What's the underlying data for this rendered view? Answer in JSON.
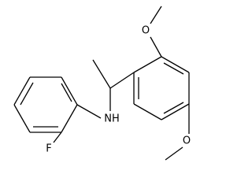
{
  "atoms": {
    "o_top": "O",
    "o_bottom": "O",
    "nh": "NH",
    "f": "F"
  }
}
